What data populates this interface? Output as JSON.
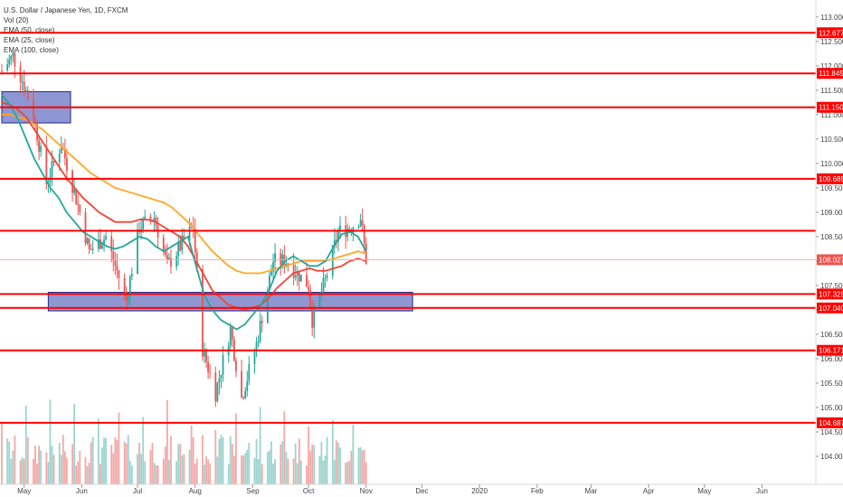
{
  "legend": {
    "symbol": "U.S. Dollar / Japanese Yen, 1D, FXCM",
    "vol": "Vol (20)",
    "ema1": "EMA (50, close)",
    "ema2": "EMA (25, close)",
    "ema3": "EMA (100, close)"
  },
  "chart_data": {
    "type": "candlestick",
    "symbol": "USDJPY",
    "y_range": [
      103.5,
      113.2
    ],
    "y_ticks": [
      "113.000",
      "112.500",
      "112.000",
      "111.500",
      "111.000",
      "110.500",
      "110.000",
      "109.500",
      "109.000",
      "108.500",
      "108.000",
      "107.500",
      "107.000",
      "106.500",
      "106.000",
      "105.500",
      "105.000",
      "104.500",
      "104.000"
    ],
    "x_ticks": [
      "May",
      "Jun",
      "Jul",
      "Aug",
      "Sep",
      "Oct",
      "Nov",
      "Dec",
      "2020",
      "Feb",
      "Mar",
      "Apr",
      "May",
      "Jun"
    ],
    "last_price": "108.027",
    "levels": [
      {
        "price": 112.677,
        "label": "112.677"
      },
      {
        "price": 111.845,
        "label": "111.845"
      },
      {
        "price": 111.15,
        "label": "111.150"
      },
      {
        "price": 109.685,
        "label": "109.685"
      },
      {
        "price": 108.62,
        "label": ""
      },
      {
        "price": 107.325,
        "label": "107.325"
      },
      {
        "price": 107.04,
        "label": "107.040"
      },
      {
        "price": 106.171,
        "label": "106.171"
      },
      {
        "price": 104.687,
        "label": "104.687"
      }
    ],
    "zones": [
      {
        "name": "supply-zone",
        "start": "2019-04-19",
        "end": "2019-05-26",
        "top": 111.47,
        "bottom": 110.83
      },
      {
        "name": "demand-zone",
        "start": "2019-05-14",
        "end": "2019-11-26",
        "top": 107.36,
        "bottom": 106.98
      }
    ],
    "colors": {
      "level_line": "#ff0000",
      "up_candle": "#26a69a",
      "down_candle": "#ef5350",
      "ema_fast": "#26a69a",
      "ema_mid": "#f44336",
      "ema_slow": "#ffa726",
      "zone_fill": "#6a74c4",
      "last_price": "#ef5350"
    },
    "ema_fast": [
      111.4,
      111.2,
      110.9,
      110.5,
      110.1,
      109.8,
      109.5,
      109.3,
      109.0,
      108.8,
      108.6,
      108.5,
      108.4,
      108.3,
      108.25,
      108.3,
      108.4,
      108.5,
      108.45,
      108.3,
      108.2,
      108.3,
      108.4,
      108.5,
      107.9,
      107.3,
      107.0,
      106.8,
      106.7,
      106.6,
      106.7,
      106.9,
      107.1,
      107.4,
      107.8,
      108.0,
      108.1,
      108.0,
      107.9,
      107.9,
      108.0,
      108.3,
      108.55,
      108.6,
      108.5,
      108.2
    ],
    "ema_mid": [
      111.25,
      111.2,
      111.1,
      110.95,
      110.7,
      110.45,
      110.2,
      109.95,
      109.7,
      109.5,
      109.3,
      109.15,
      109.0,
      108.9,
      108.8,
      108.8,
      108.8,
      108.85,
      108.85,
      108.8,
      108.7,
      108.6,
      108.5,
      108.3,
      108.0,
      107.7,
      107.4,
      107.25,
      107.1,
      107.05,
      107.0,
      107.05,
      107.1,
      107.25,
      107.45,
      107.6,
      107.75,
      107.8,
      107.85,
      107.8,
      107.8,
      107.85,
      107.9,
      108.0,
      108.05,
      108.0
    ],
    "ema_slow": [
      111.0,
      111.0,
      110.95,
      110.9,
      110.8,
      110.7,
      110.55,
      110.4,
      110.25,
      110.1,
      109.95,
      109.8,
      109.7,
      109.6,
      109.5,
      109.45,
      109.4,
      109.35,
      109.3,
      109.25,
      109.2,
      109.1,
      108.95,
      108.8,
      108.6,
      108.4,
      108.2,
      108.05,
      107.9,
      107.8,
      107.75,
      107.75,
      107.75,
      107.8,
      107.85,
      107.9,
      107.95,
      108.0,
      108.0,
      108.0,
      108.0,
      108.05,
      108.1,
      108.15,
      108.2,
      108.15
    ]
  }
}
